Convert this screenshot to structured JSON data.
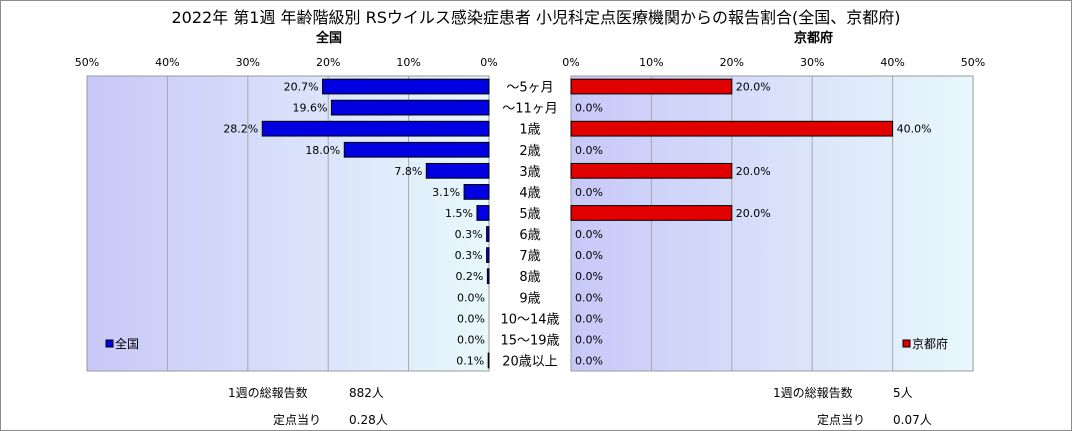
{
  "title": "2022年 第1週 年齢階級別 RSウイルス感染症患者 小児科定点医療機関からの報告割合(全国、京都府)",
  "left_panel": {
    "subtitle": "全国",
    "legend": "全国",
    "total_label": "1週の総報告数",
    "total_value": "882人",
    "per_site_label": "定点当り",
    "per_site_value": "0.28人"
  },
  "right_panel": {
    "subtitle": "京都府",
    "legend": "京都府",
    "total_label": "1週の総報告数",
    "total_value": "5人",
    "per_site_label": "定点当り",
    "per_site_value": "0.07人"
  },
  "colors": {
    "national_bar": "#0000e0",
    "kyoto_bar": "#e00000",
    "plot_gradient_left": "#c8c8f8",
    "plot_gradient_right": "#e8f8fc"
  },
  "chart_data": [
    {
      "type": "bar",
      "orientation": "horizontal",
      "direction": "right-to-left",
      "categories": [
        "～5ヶ月",
        "～11ヶ月",
        "1歳",
        "2歳",
        "3歳",
        "4歳",
        "5歳",
        "6歳",
        "7歳",
        "8歳",
        "9歳",
        "10～14歳",
        "15～19歳",
        "20歳以上"
      ],
      "series": [
        {
          "name": "全国",
          "values": [
            20.7,
            19.6,
            28.2,
            18.0,
            7.8,
            3.1,
            1.5,
            0.3,
            0.3,
            0.2,
            0.0,
            0.0,
            0.0,
            0.1
          ]
        }
      ],
      "data_labels": [
        "20.7%",
        "19.6%",
        "28.2%",
        "18.0%",
        "7.8%",
        "3.1%",
        "1.5%",
        "0.3%",
        "0.3%",
        "0.2%",
        "0.0%",
        "0.0%",
        "0.0%",
        "0.1%"
      ],
      "xlim": [
        0,
        50
      ],
      "ticks": [
        "0%",
        "10%",
        "20%",
        "30%",
        "40%",
        "50%"
      ],
      "grid": true,
      "legend": "bottom-left"
    },
    {
      "type": "bar",
      "orientation": "horizontal",
      "direction": "left-to-right",
      "categories": [
        "～5ヶ月",
        "～11ヶ月",
        "1歳",
        "2歳",
        "3歳",
        "4歳",
        "5歳",
        "6歳",
        "7歳",
        "8歳",
        "9歳",
        "10～14歳",
        "15～19歳",
        "20歳以上"
      ],
      "series": [
        {
          "name": "京都府",
          "values": [
            20.0,
            0.0,
            40.0,
            0.0,
            20.0,
            0.0,
            20.0,
            0.0,
            0.0,
            0.0,
            0.0,
            0.0,
            0.0,
            0.0
          ]
        }
      ],
      "data_labels": [
        "20.0%",
        "0.0%",
        "40.0%",
        "0.0%",
        "20.0%",
        "0.0%",
        "20.0%",
        "0.0%",
        "0.0%",
        "0.0%",
        "0.0%",
        "0.0%",
        "0.0%",
        "0.0%"
      ],
      "xlim": [
        0,
        50
      ],
      "ticks": [
        "0%",
        "10%",
        "20%",
        "30%",
        "40%",
        "50%"
      ],
      "grid": true,
      "legend": "bottom-right"
    }
  ]
}
